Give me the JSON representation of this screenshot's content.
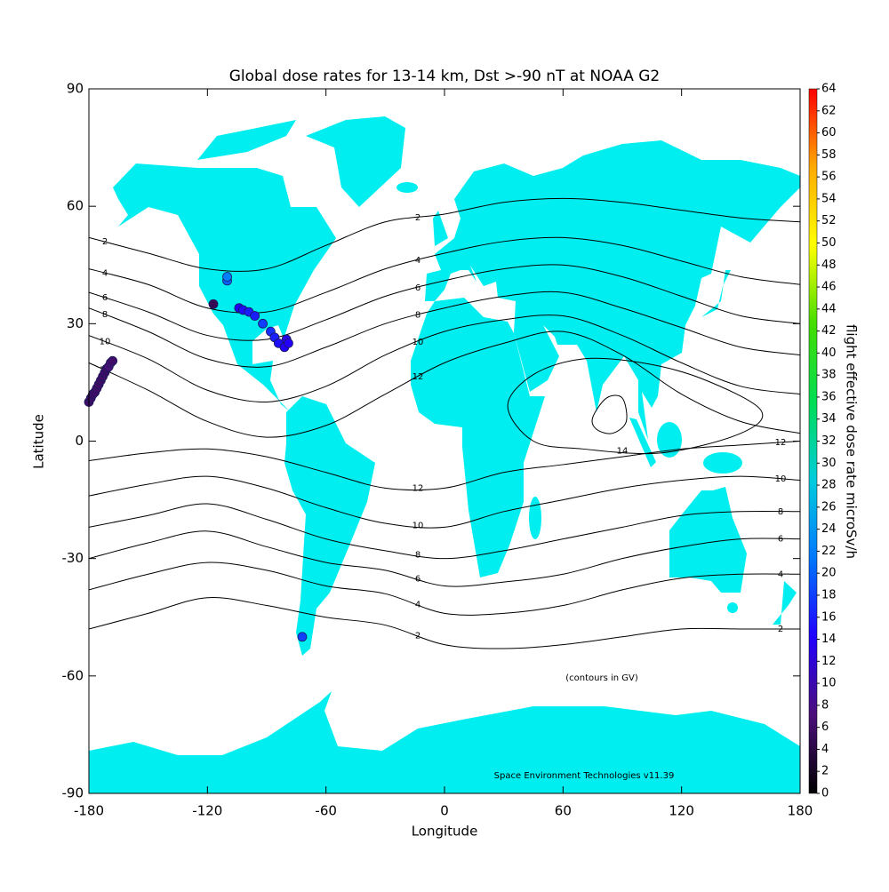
{
  "chart_data": {
    "type": "map",
    "title": "Global dose rates for 13-14 km, Dst >-90 nT at NOAA G2",
    "x_label": "Longitude",
    "y_label": "Latitude",
    "colorbar_label": "flight effective dose rate microSv/h",
    "annotations": [
      "(contours in GV)",
      "Space Environment Technologies v11.39"
    ],
    "xlim": [
      -180,
      180
    ],
    "ylim": [
      -90,
      90
    ],
    "xticks": [
      -180,
      -120,
      -60,
      0,
      60,
      120,
      180
    ],
    "yticks": [
      -90,
      -60,
      -30,
      0,
      30,
      60,
      90
    ],
    "land_color": "#00eef0",
    "contour_color": "#000000",
    "colorbar_lim": [
      0,
      64
    ],
    "colorbar_ticks": [
      0,
      2,
      4,
      6,
      8,
      10,
      12,
      14,
      16,
      18,
      20,
      22,
      24,
      26,
      28,
      30,
      32,
      34,
      36,
      38,
      40,
      42,
      44,
      46,
      48,
      50,
      52,
      54,
      56,
      58,
      60,
      62,
      64
    ],
    "colormap": [
      "#000000",
      "#4b0f7a",
      "#2200ff",
      "#0077ff",
      "#00ccdd",
      "#00dd55",
      "#44dd00",
      "#ffff00",
      "#ffaa00",
      "#ff0000"
    ],
    "contour_lons": [
      -180,
      -150,
      -120,
      -90,
      -60,
      -30,
      0,
      30,
      60,
      90,
      120,
      150,
      180
    ],
    "contours": [
      {
        "level": 2,
        "lat": [
          52,
          48,
          44,
          44,
          50,
          56,
          58,
          61,
          62,
          61,
          59,
          57,
          56
        ]
      },
      {
        "level": 4,
        "lat": [
          44,
          40,
          34,
          33,
          38,
          44,
          48,
          51,
          52,
          50,
          46,
          42,
          40
        ]
      },
      {
        "level": 6,
        "lat": [
          38,
          33,
          27,
          26,
          31,
          37,
          41,
          44,
          45,
          42,
          37,
          32,
          30
        ]
      },
      {
        "level": 8,
        "lat": [
          34,
          28,
          21,
          19,
          24,
          30,
          34,
          37,
          38,
          34,
          29,
          24,
          22
        ]
      },
      {
        "level": 10,
        "lat": [
          27,
          21,
          13,
          10,
          14,
          22,
          28,
          31,
          32,
          27,
          20,
          14,
          12
        ]
      },
      {
        "level": 12,
        "lat": [
          20,
          13,
          5,
          1,
          4,
          12,
          20,
          25,
          28,
          22,
          12,
          5,
          2
        ]
      },
      {
        "level": 12,
        "lat": [
          -5,
          -3,
          -2,
          -4,
          -8,
          -12,
          -12,
          -8,
          -6,
          -4,
          -2,
          -1,
          0
        ]
      },
      {
        "level": 10,
        "lat": [
          -14,
          -11,
          -9,
          -12,
          -17,
          -21,
          -22,
          -18,
          -15,
          -12,
          -10,
          -9,
          -10
        ]
      },
      {
        "level": 8,
        "lat": [
          -22,
          -19,
          -16,
          -20,
          -25,
          -28,
          -30,
          -28,
          -25,
          -22,
          -19,
          -18,
          -18
        ]
      },
      {
        "level": 6,
        "lat": [
          -30,
          -26,
          -23,
          -27,
          -31,
          -33,
          -37,
          -36,
          -34,
          -30,
          -27,
          -25,
          -25
        ]
      },
      {
        "level": 4,
        "lat": [
          -38,
          -34,
          -31,
          -33,
          -37,
          -39,
          -44,
          -44,
          -42,
          -38,
          -35,
          -34,
          -34
        ]
      },
      {
        "level": 2,
        "lat": [
          -48,
          -44,
          -40,
          -42,
          -45,
          -47,
          -52,
          -53,
          -52,
          -50,
          -48,
          -48,
          -48
        ]
      }
    ],
    "loops": [
      {
        "level": 14,
        "lon": [
          32,
          45,
          70,
          100,
          130,
          160,
          150,
          110,
          70,
          45
        ],
        "lat": [
          9,
          17,
          21,
          20,
          16,
          8,
          2,
          -3,
          -2,
          0
        ]
      },
      {
        "lon": [
          75,
          82,
          90,
          92,
          85,
          77
        ],
        "lat": [
          6,
          11,
          11,
          5,
          2,
          3
        ]
      }
    ],
    "points": {
      "lon": [
        -180,
        -179,
        -178,
        -177,
        -176,
        -175,
        -174,
        -173,
        -172,
        -171,
        -170,
        -169,
        -168,
        -110,
        -110,
        -117,
        -104,
        -102,
        -99,
        -96,
        -92,
        -88,
        -86,
        -84,
        -81,
        -80,
        -79,
        -72
      ],
      "lat": [
        10,
        11,
        12,
        12.5,
        13.5,
        14.5,
        15.5,
        16.5,
        17.5,
        18.5,
        19,
        20,
        20.5,
        41,
        42,
        35,
        34,
        33.5,
        33,
        32,
        30,
        28,
        26.5,
        25,
        24,
        26,
        25,
        -50
      ],
      "values": [
        6,
        6,
        6,
        6,
        6,
        6,
        6,
        6,
        6,
        6,
        7,
        7,
        6,
        20,
        22,
        5,
        14,
        15,
        16,
        16,
        18,
        17,
        16,
        15,
        14,
        13,
        14,
        18
      ]
    }
  }
}
